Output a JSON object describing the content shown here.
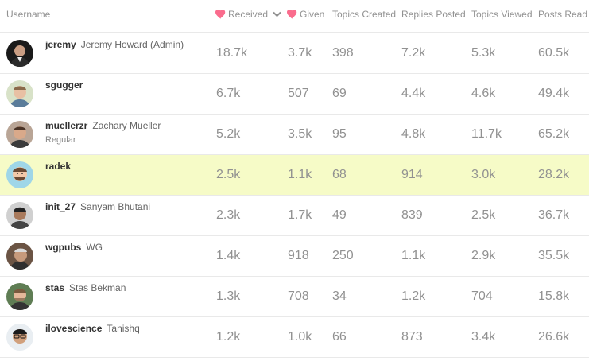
{
  "columns": {
    "username": "Username",
    "received": "Received",
    "given": "Given",
    "topics_created": "Topics Created",
    "replies_posted": "Replies Posted",
    "topics_viewed": "Topics Viewed",
    "posts_read": "Posts Read"
  },
  "icons": {
    "heart": "heart-icon",
    "sort": "chevron-down-icon"
  },
  "colors": {
    "heart": "#fa6c8d",
    "highlight_row": "#f6fbc7",
    "numbers": "#919191"
  },
  "rows": [
    {
      "username": "jeremy",
      "full_name": "Jeremy Howard (Admin)",
      "title": "",
      "received": "18.7k",
      "given": "3.7k",
      "topics_created": "398",
      "replies_posted": "7.2k",
      "topics_viewed": "5.3k",
      "posts_read": "60.5k"
    },
    {
      "username": "sgugger",
      "full_name": "",
      "title": "",
      "received": "6.7k",
      "given": "507",
      "topics_created": "69",
      "replies_posted": "4.4k",
      "topics_viewed": "4.6k",
      "posts_read": "49.4k"
    },
    {
      "username": "muellerzr",
      "full_name": "Zachary Mueller",
      "title": "Regular",
      "received": "5.2k",
      "given": "3.5k",
      "topics_created": "95",
      "replies_posted": "4.8k",
      "topics_viewed": "11.7k",
      "posts_read": "65.2k"
    },
    {
      "username": "radek",
      "full_name": "",
      "title": "",
      "received": "2.5k",
      "given": "1.1k",
      "topics_created": "68",
      "replies_posted": "914",
      "topics_viewed": "3.0k",
      "posts_read": "28.2k"
    },
    {
      "username": "init_27",
      "full_name": "Sanyam Bhutani",
      "title": "",
      "received": "2.3k",
      "given": "1.7k",
      "topics_created": "49",
      "replies_posted": "839",
      "topics_viewed": "2.5k",
      "posts_read": "36.7k"
    },
    {
      "username": "wgpubs",
      "full_name": "WG",
      "title": "",
      "received": "1.4k",
      "given": "918",
      "topics_created": "250",
      "replies_posted": "1.1k",
      "topics_viewed": "2.9k",
      "posts_read": "35.5k"
    },
    {
      "username": "stas",
      "full_name": "Stas Bekman",
      "title": "",
      "received": "1.3k",
      "given": "708",
      "topics_created": "34",
      "replies_posted": "1.2k",
      "topics_viewed": "704",
      "posts_read": "15.8k"
    },
    {
      "username": "ilovescience",
      "full_name": "Tanishq",
      "title": "",
      "received": "1.2k",
      "given": "1.0k",
      "topics_created": "66",
      "replies_posted": "873",
      "topics_viewed": "3.4k",
      "posts_read": "26.6k"
    }
  ]
}
